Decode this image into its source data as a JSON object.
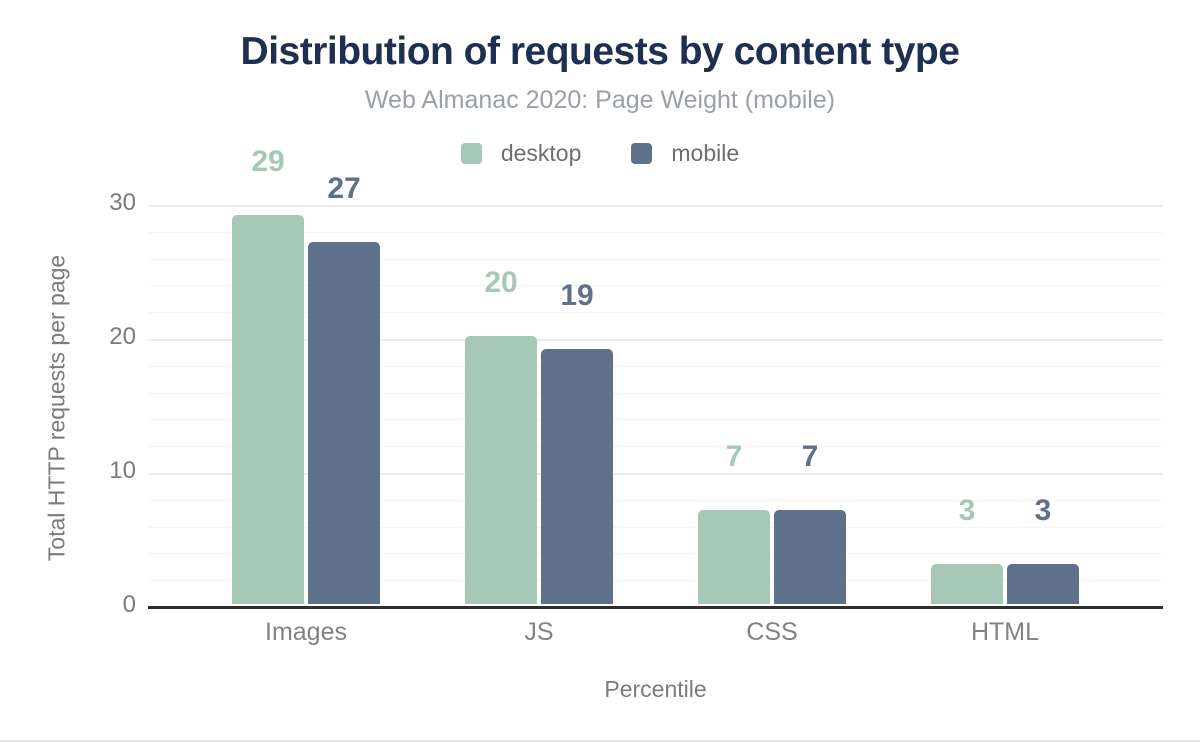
{
  "chart": {
    "title": "Distribution of requests by content type",
    "subtitle": "Web Almanac 2020: Page Weight (mobile)"
  },
  "chart_data": {
    "type": "bar",
    "categories": [
      "Images",
      "JS",
      "CSS",
      "HTML"
    ],
    "series": [
      {
        "name": "desktop",
        "color": "#a7c8b7",
        "values": [
          29,
          20,
          7,
          3
        ]
      },
      {
        "name": "mobile",
        "color": "#5e708a",
        "values": [
          27,
          19,
          7,
          3
        ]
      }
    ],
    "title": "Distribution of requests by content type",
    "subtitle": "Web Almanac 2020: Page Weight (mobile)",
    "xlabel": "Percentile",
    "ylabel": "Total HTTP requests per page",
    "ylim": [
      0,
      30
    ],
    "yticks": [
      0,
      10,
      20,
      30
    ],
    "minor_grid_step": 2,
    "grid": true,
    "legend_position": "top",
    "value_labels": true
  },
  "colors": {
    "title_text": "#1e2f51",
    "subtitle_text": "#9aa0a6",
    "axis_text": "#7b7b7b",
    "legend_text": "#6e6e6e",
    "desktop_series": "#a7c8b7",
    "mobile_series": "#5e708a",
    "axis_line": "#2e2e2e",
    "gridline_major": "#ececec",
    "gridline_minor": "#f4f4f4"
  }
}
